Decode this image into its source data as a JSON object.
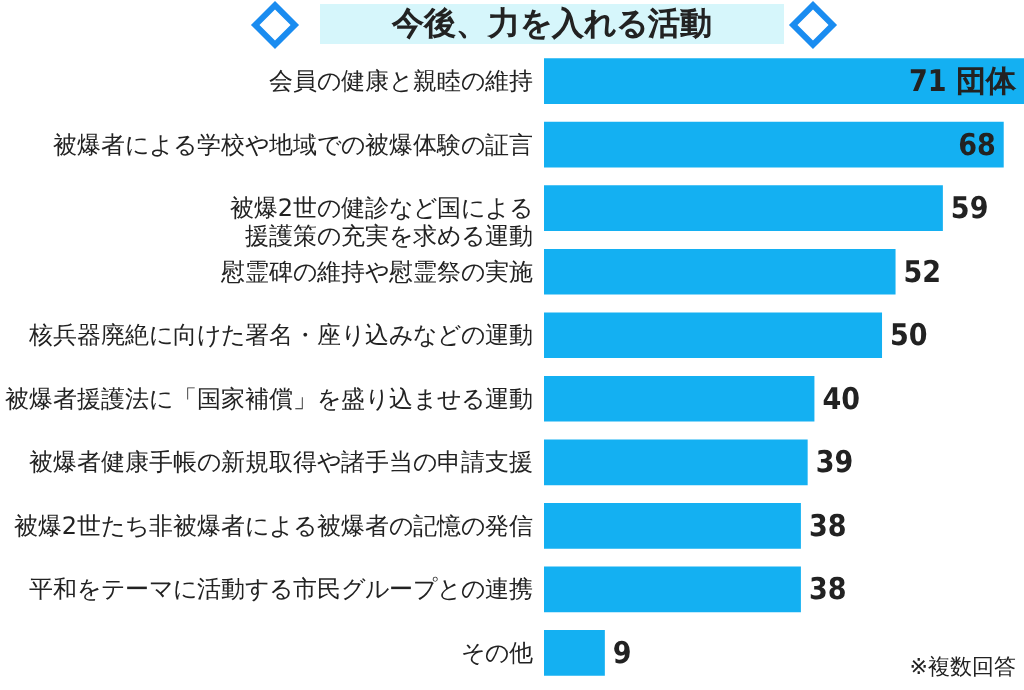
{
  "chart_data": {
    "type": "bar",
    "orientation": "horizontal",
    "title": "今後、力を入れる活動",
    "categories": [
      "会員の健康と親睦の維持",
      "被爆者による学校や地域での被爆体験の証言",
      "被爆2世の健診など国による援護策の充実を求める運動",
      "慰霊碑の維持や慰霊祭の実施",
      "核兵器廃絶に向けた署名・座り込みなどの運動",
      "被爆者援護法に「国家補償」を盛り込ませる運動",
      "被爆者健康手帳の新規取得や諸手当の申請支援",
      "被爆2世たち非被爆者による被爆者の記憶の発信",
      "平和をテーマに活動する市民グループとの連携",
      "その他"
    ],
    "values": [
      71,
      68,
      59,
      52,
      50,
      40,
      39,
      38,
      38,
      9
    ],
    "value_labels": [
      "71 団体",
      "68",
      "59",
      "52",
      "50",
      "40",
      "39",
      "38",
      "38",
      "9"
    ],
    "color": "#14b0f2",
    "annotations": [
      "※複数回答"
    ]
  }
}
